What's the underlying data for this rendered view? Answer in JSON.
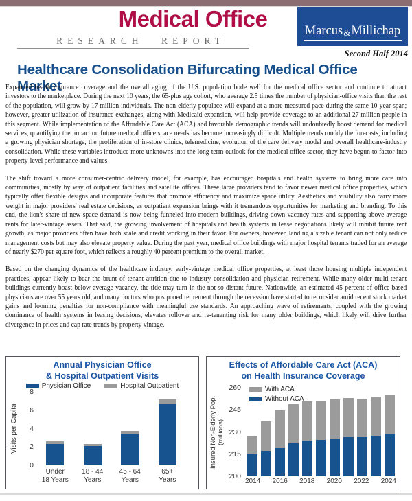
{
  "colors": {
    "accent_crimson": "#b00e46",
    "brand_navy": "#1e4d96",
    "headline_blue": "#164f8c",
    "chart_title_blue": "#1a55a3",
    "bar_blue": "#17538f",
    "bar_gray": "#9b9b9b",
    "top_strip": "#8c6d72"
  },
  "header": {
    "title": "Medical Office",
    "subtitle": "RESEARCH REPORT",
    "brand_word1": "Marcus",
    "brand_amp": "&",
    "brand_word2": "Millichap",
    "edition": "Second Half 2014"
  },
  "headline": "Healthcare Consolidation Bifurcating Medical Office Market",
  "paragraphs": [
    "Expanded health insurance coverage and the overall aging of the U.S. population bode well for the medical office sector and continue to attract investors to the marketplace. During the next 10 years, the 65-plus age cohort, who average 2.5 times the number of physician-office visits than the rest of the population, will grow by 17 million individuals. The non-elderly populace will expand at a more measured pace during the same 10-year span; however, greater utilization of insurance exchanges, along with Medicaid expansion, will help provide coverage to an additional 27 million people in this segment. While implementation of the Affordable Care Act (ACA) and favorable demographic trends will undoubtedly boost demand for medical services, quantifying the impact on future medical office space needs has become increasingly difficult. Multiple trends muddy the forecasts, including a growing physician shortage, the proliferation of in-store clinics, telemedicine, evolution of the care delivery model and overall healthcare-industry consolidation. While these variables introduce more unknowns into the long-term outlook for the medical office sector, they have begun to factor into property-level performance and values.",
    "The shift toward a more consumer-centric delivery model, for example, has encouraged hospitals and health systems to bring more care into communities, mostly by way of outpatient facilities and satellite offices. These large providers tend to favor newer medical office properties, which typically offer flexible designs and incorporate features that promote efficiency and maximize space utility. Aesthetics and visibility also carry more weight in major providers' real estate decisions, as outpatient expansion brings with it tremendous opportunities for marketing and branding. To this end, the lion's share of new space demand is now being funneled into modern buildings, driving down vacancy rates and supporting above-average rents for later-vintage assets. That said, the growing involvement of hospitals and health systems in lease negotiations likely will inhibit future rent growth, as major providers often have both scale and credit working in their favor. For owners, however, landing a sizable tenant can not only reduce management costs but may also elevate property value. During the past year, medical office buildings with major hospital tenants traded for an average of nearly $270 per square foot, which reflects a roughly 40 percent premium to the overall market.",
    "Based on the changing dynamics of the healthcare industry, early-vintage medical office properties, at least those housing multiple independent practices, appear likely to bear the brunt of tenant attrition due to industry consolidation and physician retirement. While many older multi-tenant buildings currently boast below-average vacancy, the tide may turn in the not-so-distant future. Nationwide, an estimated 45 percent of office-based physicians are over 55 years old, and many doctors who postponed retirement through the recession have started to reconsider amid recent stock market gains and looming penalties for non-compliance with meaningful use standards. An approaching wave of retirements, coupled with the growing dominance of health systems in leasing decisions, elevates rollover and re-tenanting risk for many older buildings, which likely will drive further divergence in prices and cap rate trends by property vintage."
  ],
  "chart_data": [
    {
      "type": "bar",
      "subtype": "stacked",
      "title_line1": "Annual Physician Office",
      "title_line2": "& Hospital Outpatient Visits",
      "ylabel": "Visits per Capita",
      "ylim": [
        0,
        8
      ],
      "yticks": [
        8,
        6,
        4,
        2,
        0
      ],
      "grid": false,
      "legend_position": "top-horizontal",
      "categories": [
        "Under|18 Years",
        "18 - 44|Years",
        "45 - 64|Years",
        "65+|Years"
      ],
      "xtick_labels": [
        "Under|18 Years",
        "18 - 44|Years",
        "45 - 64|Years",
        "65+|Years"
      ],
      "series": [
        {
          "name": "Physician Office",
          "color_key": "bar_blue",
          "values": [
            2.3,
            2.1,
            3.4,
            6.7
          ]
        },
        {
          "name": "Hospital Outpatient",
          "color_key": "bar_gray",
          "stack_top_totals": true,
          "values": [
            2.6,
            2.35,
            3.75,
            7.15
          ]
        }
      ]
    },
    {
      "type": "bar",
      "subtype": "stacked",
      "title_line1": "Effects of Affordable Care Act (ACA)",
      "title_line2": "on Health Insurance Coverage",
      "ylabel": "Insured Non-Elderly Pop. (millions)",
      "ylim": [
        200,
        260
      ],
      "yticks": [
        260,
        245,
        230,
        215,
        200
      ],
      "grid": false,
      "legend_position": "inside-top-left",
      "categories": [
        "2014",
        "2015",
        "2016",
        "2017",
        "2018",
        "2019",
        "2020",
        "2021",
        "2022",
        "2023",
        "2024"
      ],
      "xtick_labels": [
        "2014",
        "",
        "2016",
        "",
        "2018",
        "",
        "2020",
        "",
        "2022",
        "",
        "2024"
      ],
      "series": [
        {
          "name": "Without ACA",
          "color_key": "bar_blue",
          "values": [
            215,
            217,
            219,
            222.5,
            223.5,
            224.5,
            225.5,
            226.5,
            226.5,
            227.5,
            228.5
          ]
        },
        {
          "name": "With ACA",
          "color_key": "bar_gray",
          "stack_top_totals": true,
          "values": [
            227.5,
            237,
            244.5,
            249,
            250.5,
            251,
            252,
            253,
            252.5,
            254,
            255
          ]
        }
      ]
    }
  ]
}
